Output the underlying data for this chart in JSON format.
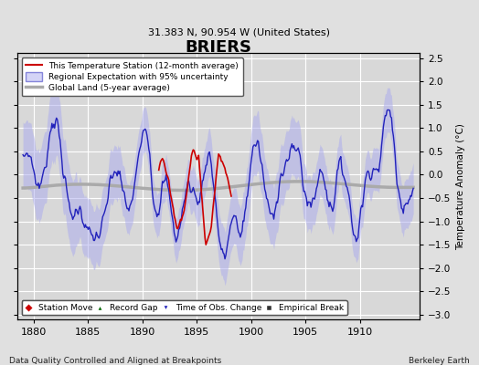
{
  "title": "BRIERS",
  "subtitle": "31.383 N, 90.954 W (United States)",
  "xlabel_bottom": "Data Quality Controlled and Aligned at Breakpoints",
  "xlabel_right": "Berkeley Earth",
  "ylabel": "Temperature Anomaly (°C)",
  "xlim": [
    1878.5,
    1915.5
  ],
  "ylim": [
    -3.1,
    2.6
  ],
  "yticks": [
    -3,
    -2.5,
    -2,
    -1.5,
    -1,
    -0.5,
    0,
    0.5,
    1,
    1.5,
    2,
    2.5
  ],
  "xticks": [
    1880,
    1885,
    1890,
    1895,
    1900,
    1905,
    1910
  ],
  "background_color": "#e0e0e0",
  "panel_color": "#d8d8d8",
  "grid_color": "#ffffff",
  "uncertainty_color": "#aaaaee",
  "uncertainty_alpha": 0.5,
  "regional_color": "#2222bb",
  "station_color": "#cc0000",
  "global_color": "#aaaaaa",
  "legend_items": [
    {
      "label": "This Temperature Station (12-month average)",
      "color": "#cc0000",
      "lw": 1.5
    },
    {
      "label": "Regional Expectation with 95% uncertainty",
      "color": "#2222bb",
      "lw": 1.5
    },
    {
      "label": "Global Land (5-year average)",
      "color": "#aaaaaa",
      "lw": 2.5
    }
  ],
  "marker_legend": [
    {
      "label": "Station Move",
      "marker": "D",
      "color": "#cc0000"
    },
    {
      "label": "Record Gap",
      "marker": "^",
      "color": "#006600"
    },
    {
      "label": "Time of Obs. Change",
      "marker": "v",
      "color": "#2222bb"
    },
    {
      "label": "Empirical Break",
      "marker": "s",
      "color": "#333333"
    }
  ]
}
